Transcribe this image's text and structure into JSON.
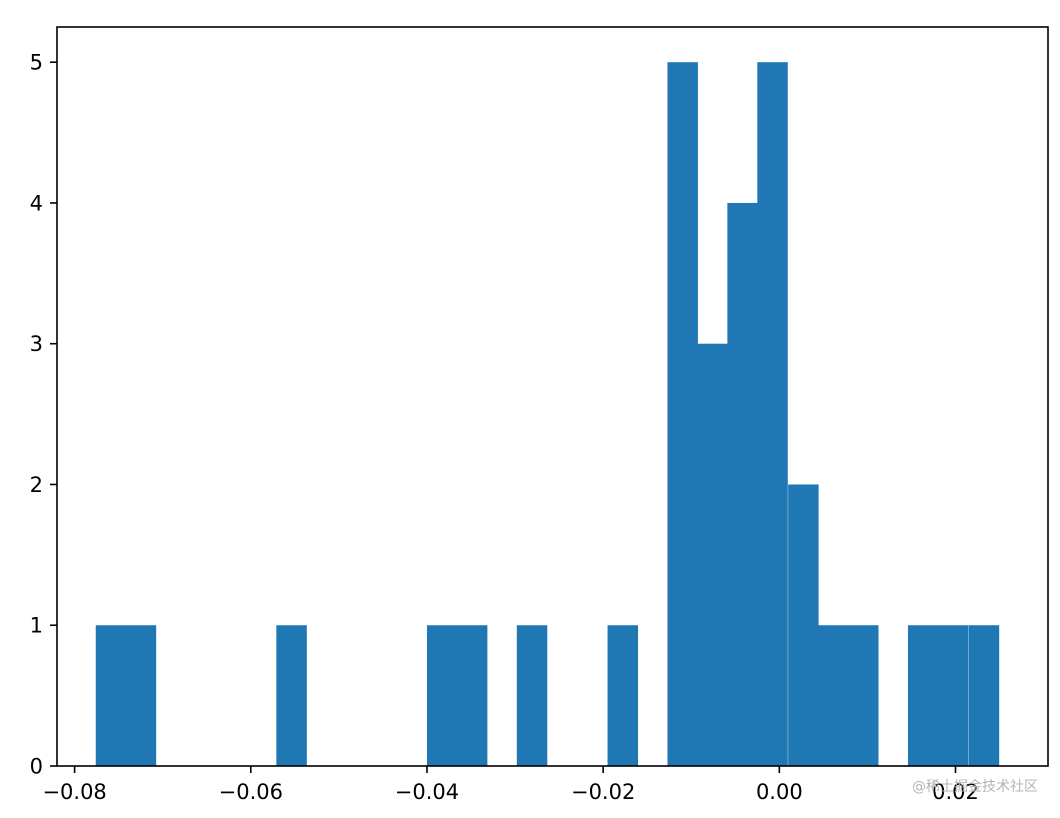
{
  "chart_data": {
    "type": "bar",
    "subtype": "histogram",
    "title": "",
    "xlabel": "",
    "ylabel": "",
    "xlim": [
      -0.082,
      0.0305
    ],
    "ylim": [
      0,
      5.25
    ],
    "bin_width": 0.003414,
    "bins": [
      {
        "x0": -0.0776,
        "count": 1
      },
      {
        "x0": -0.0742,
        "count": 1
      },
      {
        "x0": -0.0708,
        "count": 0
      },
      {
        "x0": -0.0674,
        "count": 0
      },
      {
        "x0": -0.0639,
        "count": 0
      },
      {
        "x0": -0.0605,
        "count": 0
      },
      {
        "x0": -0.0571,
        "count": 1
      },
      {
        "x0": -0.0537,
        "count": 0
      },
      {
        "x0": -0.0503,
        "count": 0
      },
      {
        "x0": -0.0469,
        "count": 0
      },
      {
        "x0": -0.0434,
        "count": 0
      },
      {
        "x0": -0.04,
        "count": 1
      },
      {
        "x0": -0.0366,
        "count": 1
      },
      {
        "x0": -0.0332,
        "count": 0
      },
      {
        "x0": -0.0298,
        "count": 1
      },
      {
        "x0": -0.0264,
        "count": 0
      },
      {
        "x0": -0.0229,
        "count": 0
      },
      {
        "x0": -0.0195,
        "count": 1
      },
      {
        "x0": -0.0161,
        "count": 0
      },
      {
        "x0": -0.0127,
        "count": 5
      },
      {
        "x0": -0.0093,
        "count": 3
      },
      {
        "x0": -0.0059,
        "count": 4
      },
      {
        "x0": -0.0025,
        "count": 5
      },
      {
        "x0": 0.001,
        "count": 2
      },
      {
        "x0": 0.0044,
        "count": 1
      },
      {
        "x0": 0.0078,
        "count": 1
      },
      {
        "x0": 0.0112,
        "count": 0
      },
      {
        "x0": 0.0146,
        "count": 1
      },
      {
        "x0": 0.018,
        "count": 1
      },
      {
        "x0": 0.0215,
        "count": 1
      }
    ],
    "x_ticks": [
      {
        "value": -0.08,
        "label": "−0.08"
      },
      {
        "value": -0.06,
        "label": "−0.06"
      },
      {
        "value": -0.04,
        "label": "−0.04"
      },
      {
        "value": -0.02,
        "label": "−0.02"
      },
      {
        "value": 0.0,
        "label": "0.00"
      },
      {
        "value": 0.02,
        "label": "0.02"
      }
    ],
    "y_ticks": [
      {
        "value": 0,
        "label": "0"
      },
      {
        "value": 1,
        "label": "1"
      },
      {
        "value": 2,
        "label": "2"
      },
      {
        "value": 3,
        "label": "3"
      },
      {
        "value": 4,
        "label": "4"
      },
      {
        "value": 5,
        "label": "5"
      }
    ],
    "grid": false,
    "legend": "none",
    "bar_color": "#1f77b4"
  },
  "watermark": "@稀土掘金技术社区"
}
